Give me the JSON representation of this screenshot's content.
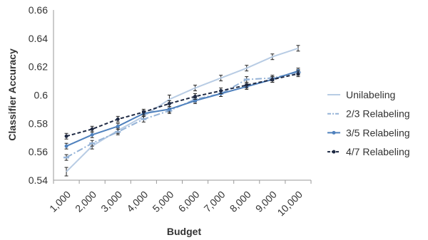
{
  "chart_data": {
    "type": "line",
    "xlabel": "Budget",
    "ylabel": "Classifier Accuracy",
    "categories": [
      "1,000",
      "2,000",
      "3,000",
      "4,000",
      "5,000",
      "6,000",
      "7,000",
      "8,000",
      "9,000",
      "10,000"
    ],
    "ylim": [
      0.54,
      0.66
    ],
    "yticks": [
      "0.54",
      "0.56",
      "0.58",
      "0.6",
      "0.62",
      "0.64",
      "0.66"
    ],
    "grid": false,
    "legend_position": "right",
    "series": [
      {
        "name": "Unilabeling",
        "color": "#b8cce4",
        "dash": "solid",
        "marker": "none",
        "values": [
          0.546,
          0.564,
          0.575,
          0.585,
          0.597,
          0.605,
          0.612,
          0.619,
          0.627,
          0.633
        ],
        "error": [
          0.003,
          0.002,
          0.002,
          0.002,
          0.003,
          0.002,
          0.002,
          0.002,
          0.002,
          0.002
        ]
      },
      {
        "name": "2/3 Relabeling",
        "color": "#95b3d7",
        "dash": "dashdot",
        "marker": "dash",
        "values": [
          0.556,
          0.566,
          0.574,
          0.583,
          0.589,
          0.597,
          0.601,
          0.611,
          0.612,
          0.616
        ],
        "error": [
          0.002,
          0.002,
          0.002,
          0.002,
          0.002,
          0.002,
          0.002,
          0.002,
          0.002,
          0.002
        ]
      },
      {
        "name": "3/5 Relabeling",
        "color": "#4f81bd",
        "dash": "solid",
        "marker": "dot",
        "values": [
          0.564,
          0.572,
          0.578,
          0.587,
          0.59,
          0.596,
          0.601,
          0.606,
          0.611,
          0.617
        ],
        "error": [
          0.002,
          0.002,
          0.002,
          0.002,
          0.002,
          0.002,
          0.002,
          0.002,
          0.002,
          0.002
        ]
      },
      {
        "name": "4/7 Relabeling",
        "color": "#1f2a44",
        "dash": "dashed",
        "marker": "dot",
        "values": [
          0.571,
          0.576,
          0.583,
          0.588,
          0.594,
          0.599,
          0.603,
          0.607,
          0.611,
          0.615
        ],
        "error": [
          0.002,
          0.002,
          0.002,
          0.002,
          0.002,
          0.002,
          0.002,
          0.002,
          0.002,
          0.002
        ]
      }
    ]
  }
}
